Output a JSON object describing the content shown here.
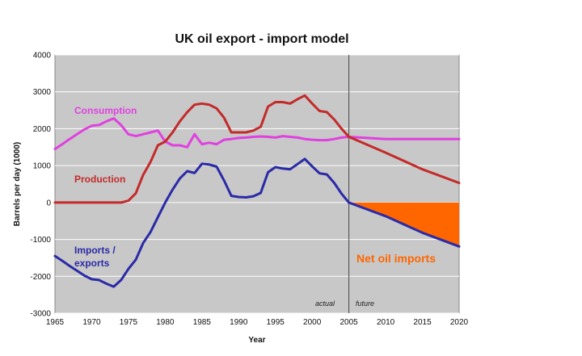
{
  "chart_data": {
    "type": "line",
    "title": "UK oil export  - import model",
    "xlabel": "Year",
    "ylabel": "Barrels per day (1000)",
    "xlim": [
      1965,
      2020
    ],
    "ylim": [
      -3000,
      4000
    ],
    "x_ticks": [
      "1965",
      "1970",
      "1975",
      "1980",
      "1985",
      "1990",
      "1995",
      "2000",
      "2005",
      "2010",
      "2015",
      "2020"
    ],
    "y_ticks": [
      "4000",
      "3000",
      "2000",
      "1000",
      "0",
      "-1000",
      "-2000",
      "-3000"
    ],
    "grid": true,
    "divider_year": 2005,
    "divider_labels": {
      "left": "actual",
      "right": "future"
    },
    "colors": {
      "plot_background": "#c8c8c8",
      "grid": "#ffffff",
      "consumption": "#e040e0",
      "production": "#c42a2a",
      "imports_exports": "#2a2aa8",
      "net_imports_fill": "#ff6600"
    },
    "series": [
      {
        "name": "Consumption",
        "x": [
          1965,
          1966,
          1967,
          1968,
          1969,
          1970,
          1971,
          1972,
          1973,
          1974,
          1975,
          1976,
          1977,
          1978,
          1979,
          1980,
          1981,
          1982,
          1983,
          1984,
          1985,
          1986,
          1987,
          1988,
          1989,
          1990,
          1991,
          1992,
          1993,
          1994,
          1995,
          1996,
          1997,
          1998,
          1999,
          2000,
          2001,
          2002,
          2003,
          2004,
          2005,
          2010,
          2015,
          2020
        ],
        "values": [
          1450,
          1580,
          1720,
          1850,
          1980,
          2080,
          2100,
          2200,
          2280,
          2100,
          1850,
          1800,
          1850,
          1900,
          1950,
          1650,
          1550,
          1550,
          1500,
          1850,
          1580,
          1620,
          1580,
          1700,
          1720,
          1750,
          1760,
          1780,
          1790,
          1780,
          1760,
          1800,
          1780,
          1760,
          1720,
          1700,
          1690,
          1690,
          1720,
          1760,
          1780,
          1720,
          1720,
          1720
        ]
      },
      {
        "name": "Production",
        "x": [
          1965,
          1970,
          1974,
          1975,
          1976,
          1977,
          1978,
          1979,
          1980,
          1981,
          1982,
          1983,
          1984,
          1985,
          1986,
          1987,
          1988,
          1989,
          1990,
          1991,
          1992,
          1993,
          1994,
          1995,
          1996,
          1997,
          1998,
          1999,
          2000,
          2001,
          2002,
          2003,
          2004,
          2005,
          2010,
          2015,
          2020
        ],
        "values": [
          0,
          0,
          0,
          50,
          250,
          750,
          1100,
          1550,
          1650,
          1900,
          2200,
          2450,
          2650,
          2680,
          2650,
          2550,
          2300,
          1900,
          1900,
          1900,
          1950,
          2050,
          2600,
          2720,
          2720,
          2680,
          2800,
          2900,
          2680,
          2480,
          2450,
          2250,
          2000,
          1780,
          1350,
          900,
          530
        ]
      },
      {
        "name": "Imports / exports",
        "x": [
          1965,
          1966,
          1967,
          1968,
          1969,
          1970,
          1971,
          1972,
          1973,
          1974,
          1975,
          1976,
          1977,
          1978,
          1979,
          1980,
          1981,
          1982,
          1983,
          1984,
          1985,
          1986,
          1987,
          1988,
          1989,
          1990,
          1991,
          1992,
          1993,
          1994,
          1995,
          1996,
          1997,
          1998,
          1999,
          2000,
          2001,
          2002,
          2003,
          2004,
          2005,
          2010,
          2015,
          2020
        ],
        "values": [
          -1450,
          -1580,
          -1720,
          -1850,
          -1980,
          -2080,
          -2100,
          -2200,
          -2280,
          -2100,
          -1800,
          -1550,
          -1100,
          -800,
          -400,
          0,
          350,
          650,
          850,
          800,
          1050,
          1030,
          970,
          600,
          180,
          150,
          140,
          170,
          260,
          820,
          960,
          920,
          900,
          1040,
          1180,
          980,
          790,
          760,
          530,
          240,
          0,
          -370,
          -820,
          -1190
        ]
      }
    ],
    "annotations": {
      "consumption_label": "Consumption",
      "production_label": "Production",
      "imports_label_line1": "Imports /",
      "imports_label_line2": "exports",
      "net_imports_label": "Net oil imports"
    }
  }
}
